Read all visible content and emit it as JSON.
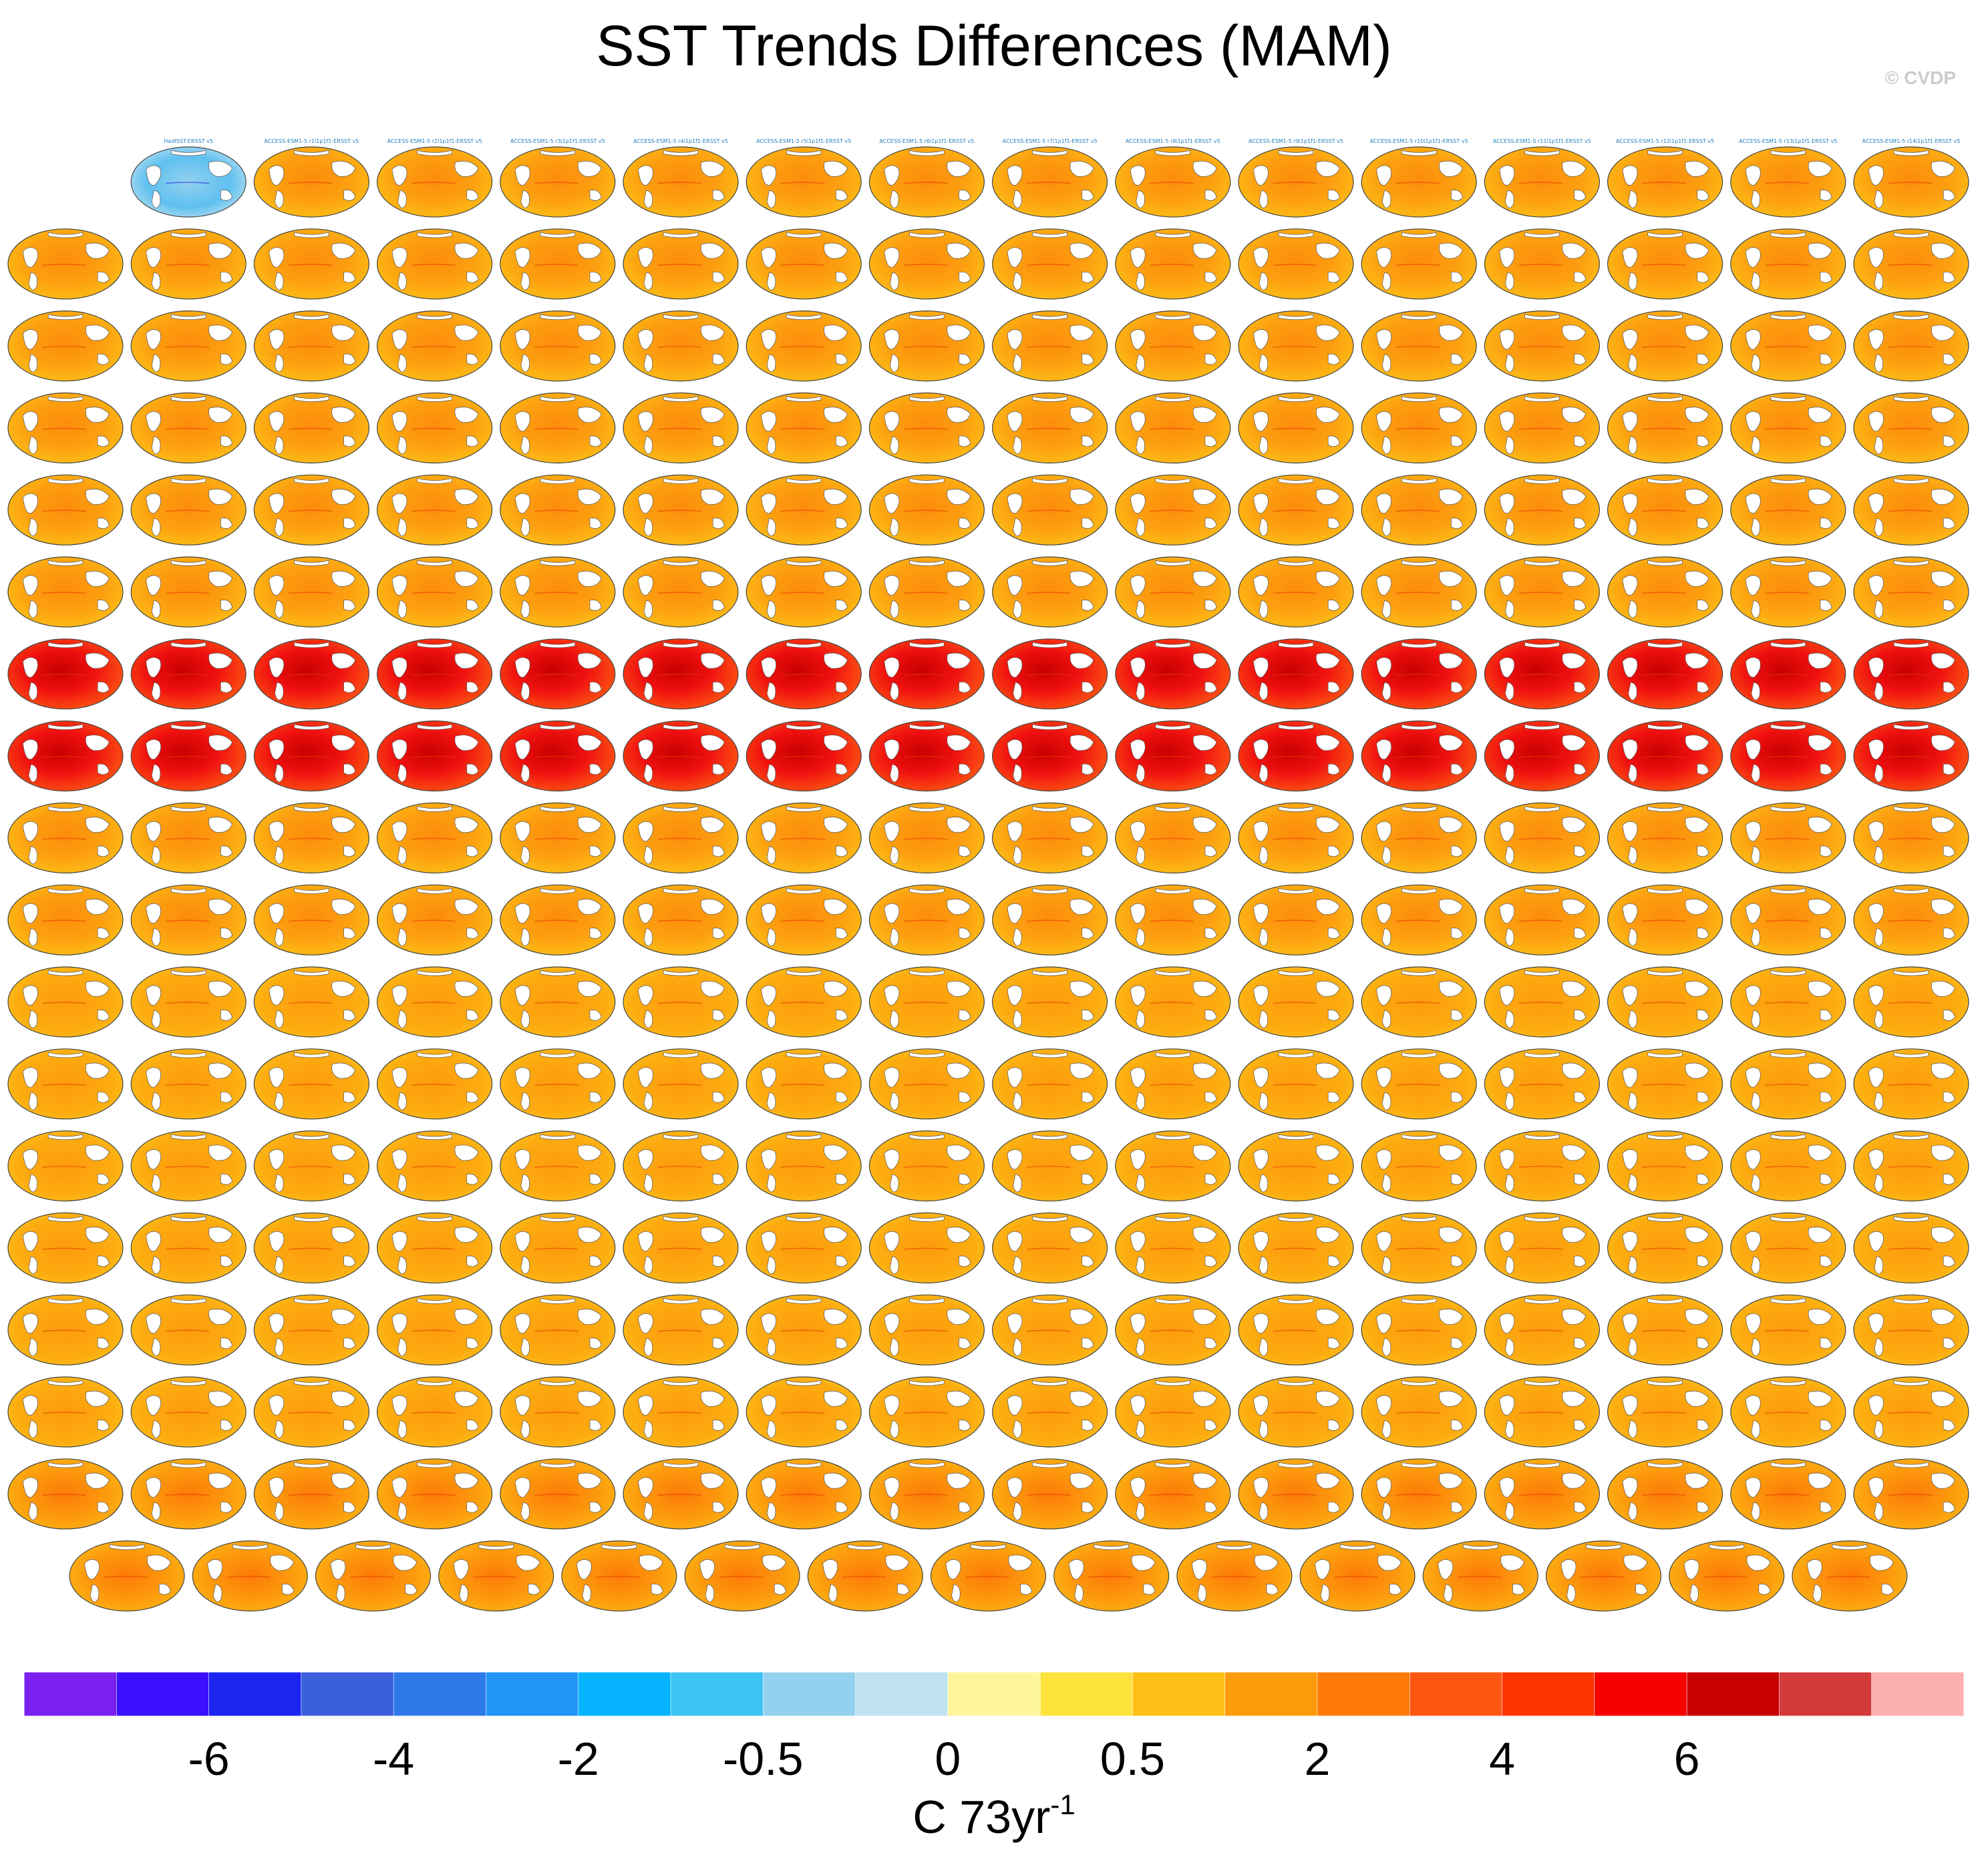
{
  "figure": {
    "title": "SST Trends Differences (MAM)",
    "watermark": "© CVDP",
    "units_main": "C 73yr",
    "units_exp": "-1"
  },
  "chart_data": {
    "type": "heatmap",
    "title": "SST Trends Differences (MAM)",
    "description_units": "C 73yr-1",
    "colorbar": {
      "colors": [
        "#7a1fee",
        "#3a0fff",
        "#1a25f0",
        "#3c5fdc",
        "#2e79e8",
        "#2295f8",
        "#05b3ff",
        "#3cc4f4",
        "#94d1ee",
        "#bfe2f2",
        "#fff69c",
        "#fde23c",
        "#fdbf16",
        "#fd9b0d",
        "#fe7b07",
        "#fd5512",
        "#fb3400",
        "#f60000",
        "#c70000",
        "#d43a3a",
        "#fcb0b0"
      ],
      "tick_labels": [
        "-6",
        "-4",
        "-2",
        "-0.5",
        "0",
        "0.5",
        "2",
        "4",
        "6"
      ],
      "tick_boundary_index": [
        2,
        4,
        6,
        8,
        10,
        12,
        14,
        16,
        18
      ]
    },
    "panels": [
      {
        "label": "HadISST-ERSST v5",
        "style": "ref"
      },
      {
        "label": "ACCESS-ESM1-5 r1i1p1f1-ERSST v5",
        "style": "med"
      },
      {
        "label": "ACCESS-ESM1-5 r2i1p1f1-ERSST v5",
        "style": "med"
      },
      {
        "label": "ACCESS-ESM1-5 r3i1p1f1-ERSST v5",
        "style": "med"
      },
      {
        "label": "ACCESS-ESM1-5 r4i1p1f1-ERSST v5",
        "style": "med"
      },
      {
        "label": "ACCESS-ESM1-5 r5i1p1f1-ERSST v5",
        "style": "med"
      },
      {
        "label": "ACCESS-ESM1-5 r6i1p1f1-ERSST v5",
        "style": "med"
      },
      {
        "label": "ACCESS-ESM1-5 r7i1p1f1-ERSST v5",
        "style": "med"
      },
      {
        "label": "ACCESS-ESM1-5 r8i1p1f1-ERSST v5",
        "style": "med"
      },
      {
        "label": "ACCESS-ESM1-5 r9i1p1f1-ERSST v5",
        "style": "med"
      },
      {
        "label": "ACCESS-ESM1-5 r10i1p1f1-ERSST v5",
        "style": "med"
      },
      {
        "label": "ACCESS-ESM1-5 r11i1p1f1-ERSST v5",
        "style": "med"
      },
      {
        "label": "ACCESS-ESM1-5 r12i1p1f1-ERSST v5",
        "style": "med"
      },
      {
        "label": "ACCESS-ESM1-5 r13i1p1f1-ERSST v5",
        "style": "med"
      },
      {
        "label": "ACCESS-ESM1-5 r14i1p1f1-ERSST v5",
        "style": "med"
      }
    ],
    "rows": [
      {
        "count": 15,
        "offset": 1,
        "color": "#1f7fbf",
        "style": "med"
      },
      {
        "count": 16,
        "offset": 0,
        "color": "#1f7fbf",
        "style": "med"
      },
      {
        "count": 16,
        "offset": 0,
        "color": "#1f7fbf",
        "style": "med"
      },
      {
        "count": 16,
        "offset": 0,
        "color": "#4aa83a",
        "style": "med"
      },
      {
        "count": 16,
        "offset": 0,
        "color": "#4aa83a",
        "style": "med"
      },
      {
        "count": 16,
        "offset": 0,
        "color": "#4aa83a",
        "style": "med"
      },
      {
        "count": 16,
        "offset": 0,
        "color": "#4aa83a",
        "style": "hot"
      },
      {
        "count": 16,
        "offset": 0,
        "color": "#4aa83a",
        "style": "hot"
      },
      {
        "count": 16,
        "offset": 0,
        "color": "#b85a20",
        "style": "med"
      },
      {
        "count": 16,
        "offset": 0,
        "color": "#b85a20",
        "style": "med"
      },
      {
        "count": 16,
        "offset": 0,
        "color": "#b89ad8",
        "style": "cool"
      },
      {
        "count": 16,
        "offset": 0,
        "color": "#b89ad8",
        "style": "cool"
      },
      {
        "count": 16,
        "offset": 0,
        "color": "#b89ad8",
        "style": "cool"
      },
      {
        "count": 16,
        "offset": 0,
        "color": "#b89ad8",
        "style": "cool"
      },
      {
        "count": 16,
        "offset": 0,
        "color": "#b89ad8",
        "style": "cool"
      },
      {
        "count": 16,
        "offset": 0,
        "color": "#b89ad8",
        "style": "cool"
      },
      {
        "count": 16,
        "offset": 0,
        "color": "#b89ad8",
        "style": "warmband"
      },
      {
        "count": 15,
        "offset": 0.5,
        "color": "#e6a6a6",
        "style": "warmband"
      }
    ]
  }
}
